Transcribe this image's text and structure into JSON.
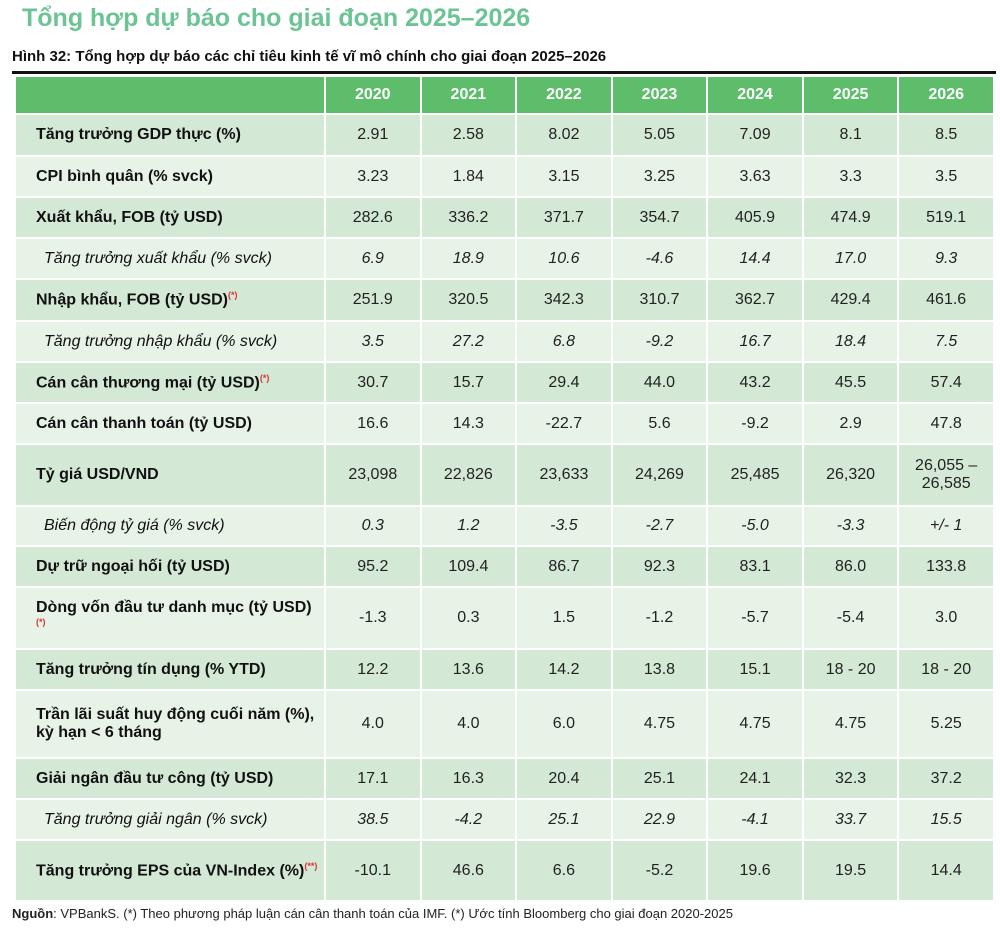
{
  "title": "Tổng hợp dự báo cho giai đoạn 2025–2026",
  "subtitle": "Hình 32: Tổng hợp dự báo các chỉ tiêu kinh tế vĩ mô chính cho giai đoạn 2025–2026",
  "columns": [
    "",
    "2020",
    "2021",
    "2022",
    "2023",
    "2024",
    "2025",
    "2026"
  ],
  "rows": [
    {
      "label": "Tăng trưởng GDP thực (%)",
      "note": "",
      "sub": false,
      "values": [
        "2.91",
        "2.58",
        "8.02",
        "5.05",
        "7.09",
        "8.1",
        "8.5"
      ]
    },
    {
      "label": "CPI bình quân (% svck)",
      "note": "",
      "sub": false,
      "values": [
        "3.23",
        "1.84",
        "3.15",
        "3.25",
        "3.63",
        "3.3",
        "3.5"
      ]
    },
    {
      "label": "Xuất khẩu, FOB (tỷ USD)",
      "note": "",
      "sub": false,
      "values": [
        "282.6",
        "336.2",
        "371.7",
        "354.7",
        "405.9",
        "474.9",
        "519.1"
      ]
    },
    {
      "label": "Tăng trưởng xuất khẩu (% svck)",
      "note": "",
      "sub": true,
      "values": [
        "6.9",
        "18.9",
        "10.6",
        "-4.6",
        "14.4",
        "17.0",
        "9.3"
      ]
    },
    {
      "label": "Nhập khẩu, FOB (tỷ USD)",
      "note": "(*)",
      "sub": false,
      "values": [
        "251.9",
        "320.5",
        "342.3",
        "310.7",
        "362.7",
        "429.4",
        "461.6"
      ]
    },
    {
      "label": "Tăng trưởng nhập khẩu (% svck)",
      "note": "",
      "sub": true,
      "values": [
        "3.5",
        "27.2",
        "6.8",
        "-9.2",
        "16.7",
        "18.4",
        "7.5"
      ]
    },
    {
      "label": "Cán cân thương mại (tỷ USD)",
      "note": "(*)",
      "sub": false,
      "values": [
        "30.7",
        "15.7",
        "29.4",
        "44.0",
        "43.2",
        "45.5",
        "57.4"
      ]
    },
    {
      "label": "Cán cân thanh toán (tỷ USD)",
      "note": "",
      "sub": false,
      "values": [
        "16.6",
        "14.3",
        "-22.7",
        "5.6",
        "-9.2",
        "2.9",
        "47.8"
      ]
    },
    {
      "label": "Tỷ giá USD/VND",
      "note": "",
      "sub": false,
      "values": [
        "23,098",
        "22,826",
        "23,633",
        "24,269",
        "25,485",
        "26,320",
        "26,055 – 26,585"
      ]
    },
    {
      "label": "Biến động tỷ giá (% svck)",
      "note": "",
      "sub": true,
      "values": [
        "0.3",
        "1.2",
        "-3.5",
        "-2.7",
        "-5.0",
        "-3.3",
        "+/- 1"
      ]
    },
    {
      "label": "Dự trữ ngoại hối (tỷ USD)",
      "note": "",
      "sub": false,
      "values": [
        "95.2",
        "109.4",
        "86.7",
        "92.3",
        "83.1",
        "86.0",
        "133.8"
      ]
    },
    {
      "label": "Dòng vốn đầu tư danh mục (tỷ USD)",
      "note": "(*)",
      "sub": false,
      "values": [
        "-1.3",
        "0.3",
        "1.5",
        "-1.2",
        "-5.7",
        "-5.4",
        "3.0"
      ]
    },
    {
      "label": "Tăng trưởng tín dụng (% YTD)",
      "note": "",
      "sub": false,
      "values": [
        "12.2",
        "13.6",
        "14.2",
        "13.8",
        "15.1",
        "18 - 20",
        "18 - 20"
      ]
    },
    {
      "label": "Trần lãi suất huy động cuối năm (%), kỳ hạn < 6 tháng",
      "note": "",
      "sub": false,
      "values": [
        "4.0",
        "4.0",
        "6.0",
        "4.75",
        "4.75",
        "4.75",
        "5.25"
      ]
    },
    {
      "label": "Giải ngân đầu tư công (tỷ USD)",
      "note": "",
      "sub": false,
      "values": [
        "17.1",
        "16.3",
        "20.4",
        "25.1",
        "24.1",
        "32.3",
        "37.2"
      ]
    },
    {
      "label": "Tăng trưởng giải ngân (% svck)",
      "note": "",
      "sub": true,
      "values": [
        "38.5",
        "-4.2",
        "25.1",
        "22.9",
        "-4.1",
        "33.7",
        "15.5"
      ]
    },
    {
      "label": "Tăng trưởng EPS của VN-Index (%)",
      "note": "(**)",
      "sub": false,
      "values": [
        "-10.1",
        "46.6",
        "6.6",
        "-5.2",
        "19.6",
        "19.5",
        "14.4"
      ]
    }
  ],
  "footnote": {
    "source_label": "Nguồn",
    "text": ": VPBankS. (*) Theo phương pháp luận cán cân thanh toán của IMF. (*) Ước tính Bloomberg cho giai đoạn 2020-2025"
  },
  "colors": {
    "title": "#6cc495",
    "header": "#5dbd6b",
    "row_dark": "#d4e8d6",
    "row_light": "#e8f3e8"
  }
}
